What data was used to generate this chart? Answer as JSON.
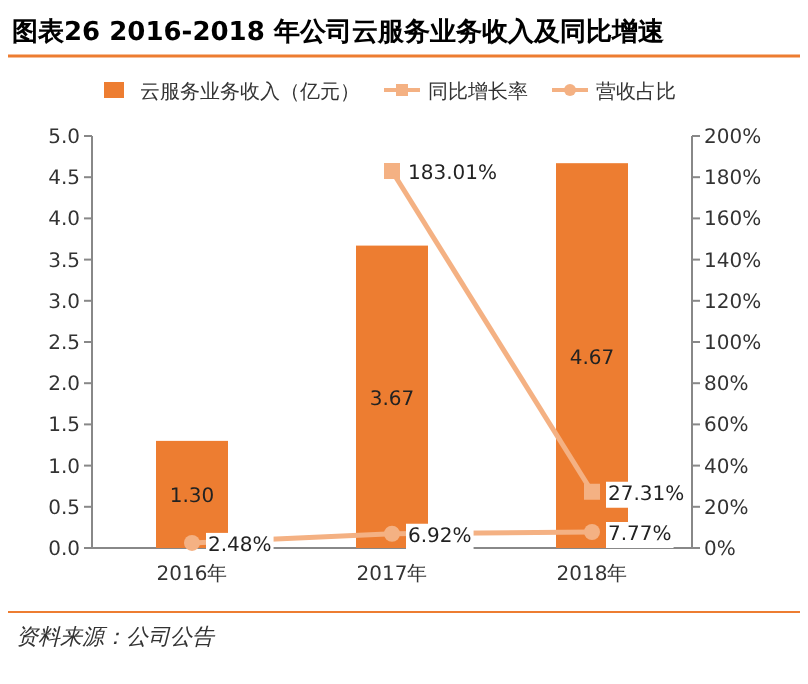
{
  "chart_data": {
    "type": "bar",
    "title": "图表26  2016-2018 年公司云服务业务收入及同比增速",
    "categories": [
      "2016年",
      "2017年",
      "2018年"
    ],
    "series": [
      {
        "name": "云服务业务收入（亿元）",
        "color": "#ed7d31",
        "values": [
          1.3,
          3.67,
          4.67
        ],
        "value_labels": [
          "1.30",
          "3.67",
          "4.67"
        ]
      },
      {
        "name": "同比增长率",
        "type": "line",
        "axis": "y2",
        "color": "#f4b183",
        "marker": "square",
        "values": [
          null,
          183.01,
          27.31
        ],
        "value_labels": [
          null,
          "183.01%",
          "27.31%"
        ]
      },
      {
        "name": "营收占比",
        "type": "line",
        "axis": "y2",
        "color": "#f4b183",
        "marker": "circle",
        "values": [
          2.48,
          6.92,
          7.77
        ],
        "value_labels": [
          "2.48%",
          "6.92%",
          "7.77%"
        ]
      }
    ],
    "ylim": [
      0,
      5
    ],
    "yticks": [
      {
        "value": 0,
        "label": "0.0"
      },
      {
        "value": 0.5,
        "label": "0.5"
      },
      {
        "value": 1,
        "label": "1.0"
      },
      {
        "value": 1.5,
        "label": "1.5"
      },
      {
        "value": 2,
        "label": "2.0"
      },
      {
        "value": 2.5,
        "label": "2.5"
      },
      {
        "value": 3,
        "label": "3.0"
      },
      {
        "value": 3.5,
        "label": "3.5"
      },
      {
        "value": 4,
        "label": "4.0"
      },
      {
        "value": 4.5,
        "label": "4.5"
      },
      {
        "value": 5,
        "label": "5.0"
      }
    ],
    "y2lim": [
      0,
      200
    ],
    "y2ticks": [
      {
        "value": 0,
        "label": "0%"
      },
      {
        "value": 20,
        "label": "20%"
      },
      {
        "value": 40,
        "label": "40%"
      },
      {
        "value": 60,
        "label": "60%"
      },
      {
        "value": 80,
        "label": "80%"
      },
      {
        "value": 100,
        "label": "100%"
      },
      {
        "value": 120,
        "label": "120%"
      },
      {
        "value": 140,
        "label": "140%"
      },
      {
        "value": 160,
        "label": "160%"
      },
      {
        "value": 180,
        "label": "180%"
      },
      {
        "value": 200,
        "label": "200%"
      }
    ],
    "legend": "top",
    "annotations": [
      "资料来源：公司公告"
    ]
  }
}
